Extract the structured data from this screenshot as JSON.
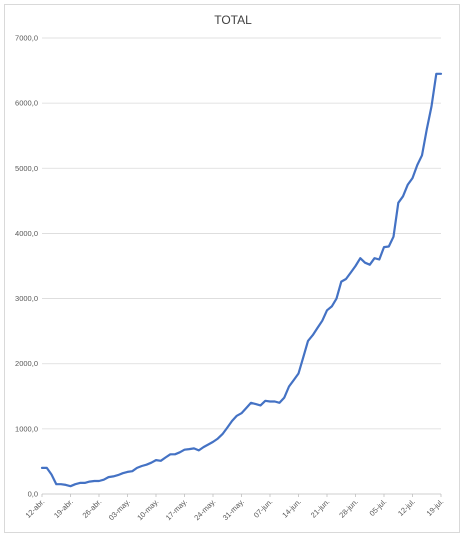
{
  "chart_data": {
    "type": "line",
    "title": "TOTAL",
    "xlabel": "",
    "ylabel": "",
    "ylim": [
      0,
      7000
    ],
    "yticks": [
      "0,0",
      "1000,0",
      "2000,0",
      "3000,0",
      "4000,0",
      "5000,0",
      "6000,0",
      "7000,0"
    ],
    "xticks": [
      "12-abr.",
      "19-abr.",
      "26-abr.",
      "03-may.",
      "10-may.",
      "17-may.",
      "24-may.",
      "31-may.",
      "07-jun.",
      "14-jun.",
      "21-jun.",
      "28-jun.",
      "05-jul.",
      "12-jul.",
      "19-jul."
    ],
    "grid": "horizontal",
    "legend": "none",
    "line_color": "#4472c4",
    "series": [
      {
        "values": [
          400,
          400,
          300,
          150,
          150,
          140,
          120,
          150,
          170,
          170,
          190,
          200,
          200,
          220,
          260,
          270,
          290,
          320,
          340,
          350,
          400,
          430,
          450,
          480,
          520,
          510,
          560,
          610,
          610,
          640,
          680,
          690,
          700,
          670,
          720,
          760,
          800,
          850,
          920,
          1020,
          1120,
          1200,
          1240,
          1320,
          1400,
          1380,
          1360,
          1430,
          1420,
          1420,
          1400,
          1480,
          1650,
          1750,
          1850,
          2100,
          2350,
          2440,
          2550,
          2660,
          2820,
          2880,
          3000,
          3260,
          3300,
          3400,
          3500,
          3620,
          3550,
          3520,
          3620,
          3600,
          3790,
          3800,
          3950,
          4470,
          4570,
          4750,
          4850,
          5050,
          5200,
          5600,
          5950,
          6450,
          6450
        ]
      }
    ]
  }
}
